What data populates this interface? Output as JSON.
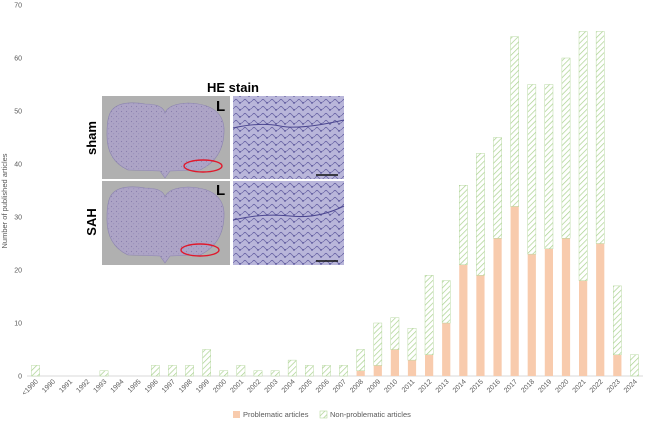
{
  "chart_data": {
    "type": "bar",
    "stacked": true,
    "categories": [
      "<1990",
      "1990",
      "1991",
      "1992",
      "1993",
      "1994",
      "1995",
      "1996",
      "1997",
      "1998",
      "1999",
      "2000",
      "2001",
      "2002",
      "2003",
      "2004",
      "2005",
      "2006",
      "2007",
      "2008",
      "2009",
      "2010",
      "2011",
      "2012",
      "2013",
      "2014",
      "2015",
      "2016",
      "2017",
      "2018",
      "2019",
      "2020",
      "2021",
      "2022",
      "2023",
      "2024"
    ],
    "series": [
      {
        "name": "Problematic articles",
        "color": "#f8cbad",
        "pattern": "solid",
        "values": [
          0,
          0,
          0,
          0,
          0,
          0,
          0,
          0,
          0,
          0,
          0,
          0,
          0,
          0,
          0,
          0,
          0,
          0,
          0,
          1,
          2,
          5,
          3,
          4,
          10,
          21,
          19,
          26,
          32,
          23,
          24,
          26,
          18,
          25,
          4,
          0
        ]
      },
      {
        "name": "Non-problematic articles",
        "color": "#a9d18e",
        "pattern": "diagonal-hatch",
        "values": [
          2,
          0,
          0,
          0,
          1,
          0,
          0,
          2,
          2,
          2,
          5,
          1,
          2,
          1,
          1,
          3,
          2,
          2,
          2,
          4,
          8,
          6,
          6,
          15,
          8,
          15,
          23,
          19,
          32,
          32,
          31,
          34,
          47,
          40,
          13,
          4
        ]
      }
    ],
    "ylabel": "Number of published articles",
    "xlabel": "",
    "ylim": [
      0,
      70
    ],
    "yticks": [
      0,
      10,
      20,
      30,
      40,
      50,
      60,
      70
    ],
    "grid": false,
    "legend": "bottom",
    "tick_label_rotation": -45
  },
  "inset": {
    "title": "HE stain",
    "rows": [
      "sham",
      "SAH"
    ],
    "side_marker": "L"
  }
}
